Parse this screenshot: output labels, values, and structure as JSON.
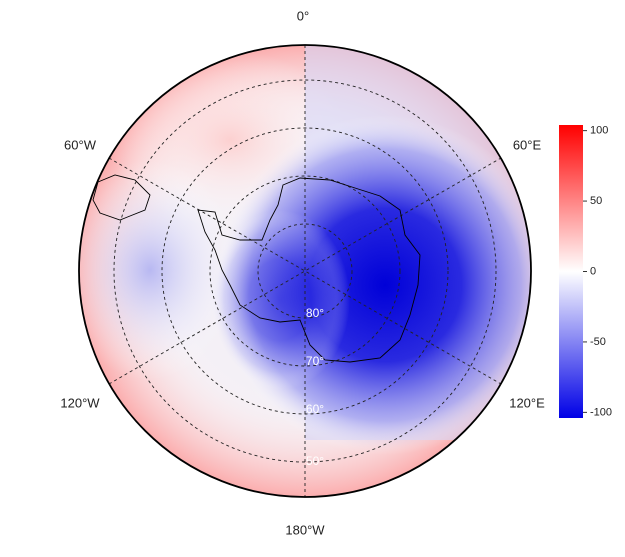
{
  "map": {
    "longitude_labels": [
      "0°",
      "60°E",
      "120°E",
      "180°W",
      "120°W",
      "60°W"
    ],
    "latitude_labels": [
      "80°",
      "70°",
      "60°",
      "50°"
    ],
    "colorbar": {
      "lim": [
        -104,
        104
      ],
      "ticks": [
        100,
        50,
        0,
        -50,
        -100
      ],
      "colors": [
        "#0000e6",
        "#ffffff",
        "#ff0000"
      ]
    }
  }
}
